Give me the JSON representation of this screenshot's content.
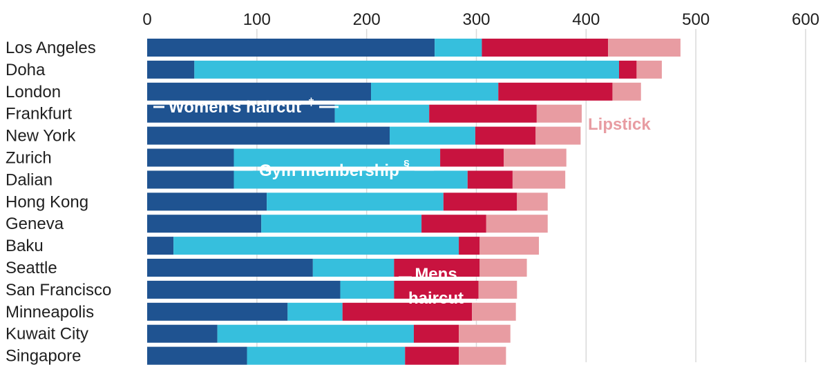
{
  "chart_data": {
    "type": "bar",
    "orientation": "horizontal",
    "stacked": true,
    "title": "",
    "xlabel": "",
    "ylabel": "",
    "xlim": [
      0,
      600
    ],
    "xticks": [
      0,
      100,
      200,
      300,
      400,
      500,
      600
    ],
    "grid": true,
    "legend": "none",
    "categories": [
      "Los Angeles",
      "Doha",
      "London",
      "Frankfurt",
      "New York",
      "Zurich",
      "Dalian",
      "Hong Kong",
      "Geneva",
      "Baku",
      "Seattle",
      "San Francisco",
      "Minneapolis",
      "Kuwait City",
      "Singapore"
    ],
    "series": [
      {
        "key": "womens_haircut",
        "color": "#1f5391",
        "values": [
          262,
          43,
          204,
          171,
          221,
          79,
          79,
          109,
          104,
          24,
          151,
          176,
          128,
          64,
          91
        ]
      },
      {
        "key": "gym_membership",
        "color": "#36bfdd",
        "values": [
          43,
          387,
          116,
          86,
          78,
          188,
          213,
          161,
          146,
          260,
          74,
          49,
          50,
          179,
          144
        ]
      },
      {
        "key": "mens_haircut",
        "color": "#c8133f",
        "values": [
          115,
          16,
          104,
          98,
          55,
          58,
          41,
          67,
          59,
          19,
          78,
          77,
          118,
          41,
          49
        ]
      },
      {
        "key": "lipstick",
        "color": "#e89ca2",
        "values": [
          66,
          23,
          26,
          41,
          41,
          57,
          48,
          28,
          56,
          54,
          43,
          35,
          40,
          47,
          43
        ]
      }
    ],
    "annotations": [
      {
        "key": "womens_haircut",
        "text": "Women’s haircut",
        "footnote": "‡"
      },
      {
        "key": "gym_membership",
        "text": "Gym membership",
        "footnote": "§"
      },
      {
        "key": "mens_haircut",
        "lines": [
          "Mens",
          "haircut"
        ]
      },
      {
        "key": "lipstick",
        "text": "Lipstick"
      }
    ],
    "colors": {
      "grid": "#d9d9d9",
      "text": "#1f1f1f",
      "annotation_white": "#ffffff",
      "annotation_lipstick": "#e89ca2"
    }
  }
}
